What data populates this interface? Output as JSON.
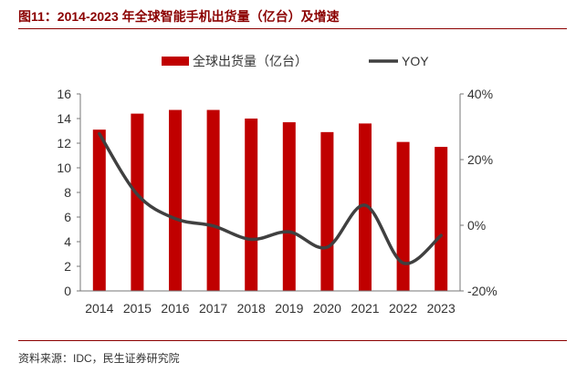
{
  "title": "图11：2014-2023 年全球智能手机出货量（亿台）及增速",
  "source": "资料来源：IDC，民生证券研究院",
  "chart_data": {
    "type": "bar",
    "categories": [
      "2014",
      "2015",
      "2016",
      "2017",
      "2018",
      "2019",
      "2020",
      "2021",
      "2022",
      "2023"
    ],
    "series": [
      {
        "name": "全球出货量（亿台）",
        "type": "bar",
        "axis": "left",
        "color": "#c00000",
        "values": [
          13.1,
          14.4,
          14.7,
          14.7,
          14.0,
          13.7,
          12.9,
          13.6,
          12.1,
          11.7
        ]
      },
      {
        "name": "YOY",
        "type": "line",
        "axis": "right",
        "color": "#404040",
        "values": [
          27.9,
          9.4,
          2.0,
          -0.2,
          -4.3,
          -2.0,
          -6.7,
          6.1,
          -11.5,
          -3.1
        ]
      }
    ],
    "y_left": {
      "ylim": [
        0,
        16
      ],
      "ticks": [
        "0",
        "2",
        "4",
        "6",
        "8",
        "10",
        "12",
        "14",
        "16"
      ]
    },
    "y_right": {
      "ylim": [
        -20,
        40
      ],
      "ticks": [
        "-20%",
        "0%",
        "20%",
        "40%"
      ]
    },
    "legend": "top-center",
    "grid": false
  }
}
